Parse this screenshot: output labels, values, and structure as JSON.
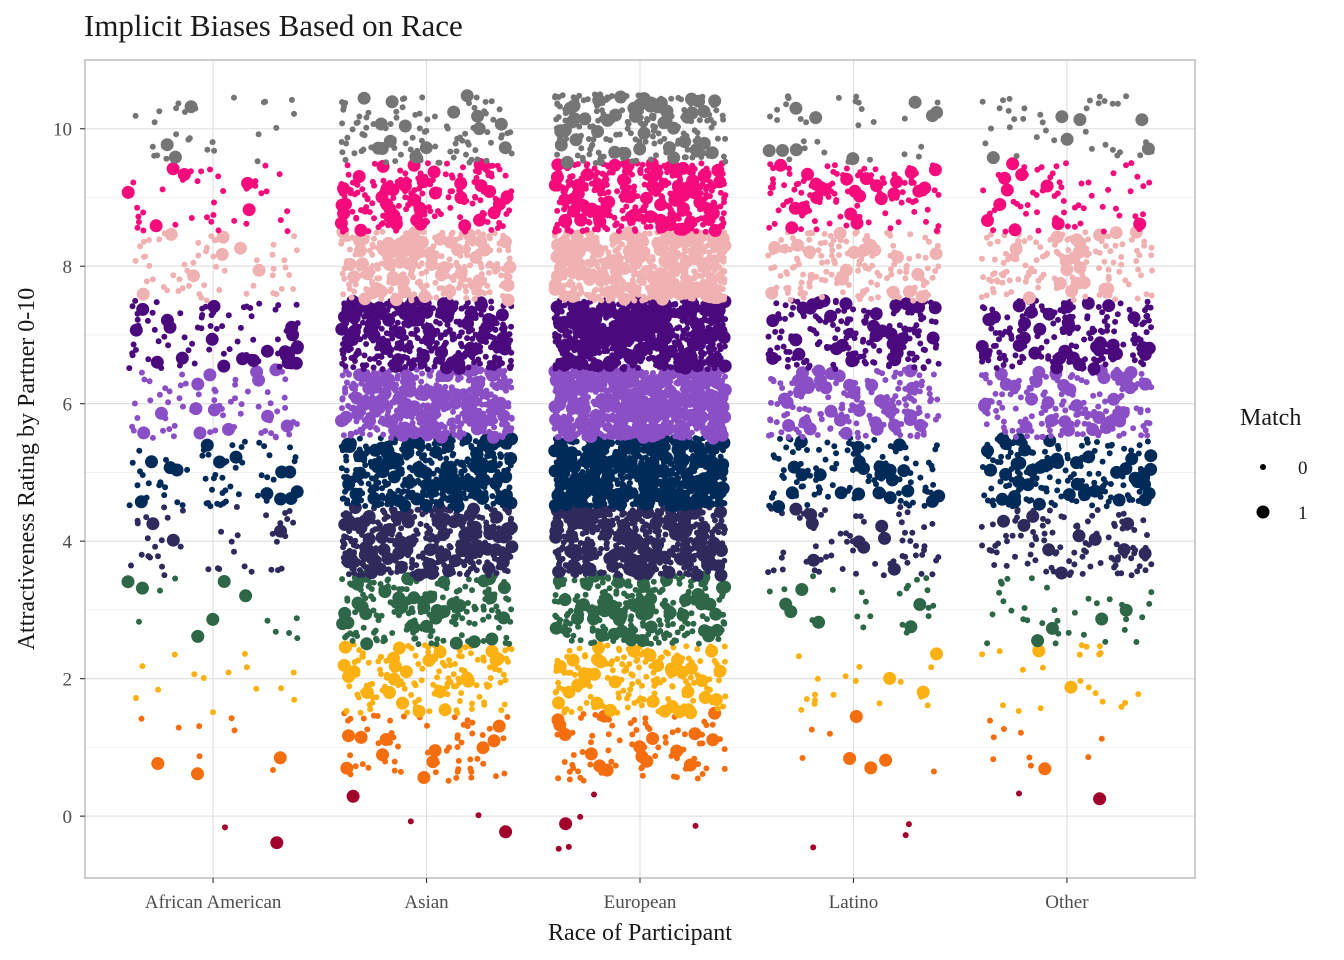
{
  "chart_data": {
    "type": "scatter",
    "title": "Implicit Biases Based on Race",
    "xlabel": "Race of Participant",
    "ylabel": "Attractiveness Rating by Partner 0-10",
    "categories": [
      "African American",
      "Asian",
      "European",
      "Latino",
      "Other"
    ],
    "y_ticks": [
      0,
      2,
      4,
      6,
      8,
      10
    ],
    "ylim": [
      -0.9,
      11.0
    ],
    "jitter": "horizontal ±0.4 per category, vertical ±0.5 per rating",
    "grid": true,
    "legend": {
      "title": "Match",
      "placement": "right",
      "entries": [
        "0",
        "1"
      ]
    },
    "rating_levels": [
      0,
      1,
      2,
      3,
      4,
      5,
      6,
      7,
      8,
      9,
      10
    ],
    "rating_colors": [
      "#a0002a",
      "#f46d0f",
      "#fab111",
      "#2e6747",
      "#2f2a5c",
      "#002b59",
      "#8a4fc5",
      "#4a0a7d",
      "#efb1b1",
      "#f50b7c",
      "#757575"
    ],
    "point_counts": {
      "African American": [
        2,
        10,
        14,
        16,
        42,
        70,
        72,
        82,
        60,
        40,
        28
      ],
      "Asian": [
        4,
        70,
        160,
        200,
        360,
        450,
        490,
        460,
        300,
        200,
        110
      ],
      "European": [
        6,
        90,
        180,
        280,
        520,
        760,
        800,
        780,
        620,
        430,
        230
      ],
      "Latino": [
        3,
        8,
        20,
        28,
        70,
        130,
        180,
        190,
        170,
        120,
        40
      ],
      "Other": [
        2,
        10,
        22,
        36,
        110,
        190,
        180,
        190,
        140,
        70,
        40
      ]
    },
    "match_rate": 0.16
  }
}
